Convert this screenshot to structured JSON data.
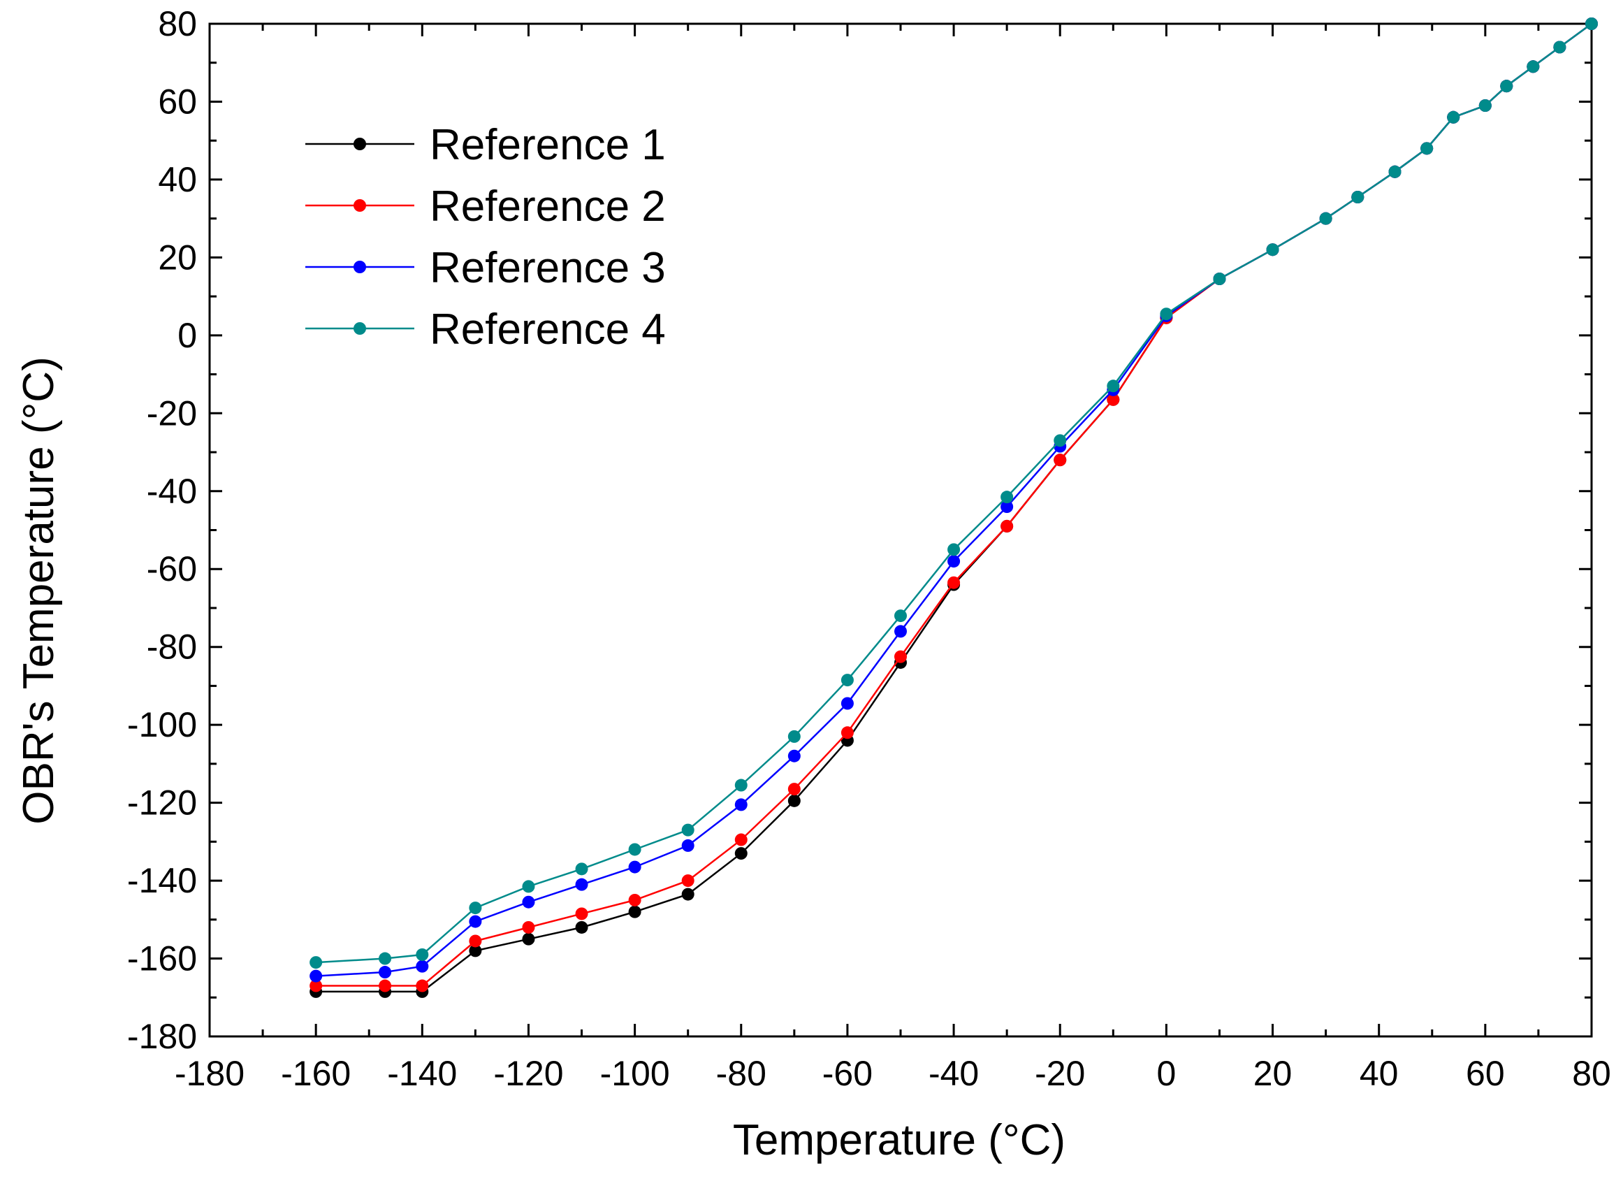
{
  "chart_data": {
    "type": "line",
    "title": "",
    "xlabel": "Temperature (°C)",
    "ylabel": "OBR's Temperature (°C)",
    "xlim": [
      -180,
      80
    ],
    "ylim": [
      -180,
      80
    ],
    "xticks": [
      -180,
      -160,
      -140,
      -120,
      -100,
      -80,
      -60,
      -40,
      -20,
      0,
      20,
      40,
      60,
      80
    ],
    "yticks": [
      -180,
      -160,
      -140,
      -120,
      -100,
      -80,
      -60,
      -40,
      -20,
      0,
      20,
      40,
      60,
      80
    ],
    "grid": false,
    "legend_position": "top-left",
    "x": [
      -160,
      -147,
      -140,
      -130,
      -120,
      -110,
      -100,
      -90,
      -80,
      -70,
      -60,
      -50,
      -40,
      -30,
      -20,
      -10,
      0,
      10,
      20,
      30,
      36,
      43,
      49,
      54,
      60,
      64,
      69,
      74,
      80
    ],
    "series": [
      {
        "name": "Reference 1",
        "color": "#000000",
        "values": [
          -168.5,
          -168.5,
          -168.5,
          -158,
          -155,
          -152,
          -148,
          -143.5,
          -133,
          -119.5,
          -104,
          -84,
          -64,
          -49,
          -32,
          -16.5,
          4.5,
          14.5,
          22,
          30,
          35.5,
          42,
          48,
          56,
          59,
          64,
          69,
          74,
          80
        ]
      },
      {
        "name": "Reference 2",
        "color": "#ff0000",
        "values": [
          -167,
          -167,
          -167,
          -155.5,
          -152,
          -148.5,
          -145,
          -140,
          -129.5,
          -116.5,
          -102,
          -82.5,
          -63.5,
          -49,
          -32,
          -16.5,
          4.5,
          14.5,
          22,
          30,
          35.5,
          42,
          48,
          56,
          59,
          64,
          69,
          74,
          80
        ]
      },
      {
        "name": "Reference 3",
        "color": "#0000ff",
        "values": [
          -164.5,
          -163.5,
          -162,
          -150.5,
          -145.5,
          -141,
          -136.5,
          -131,
          -120.5,
          -108,
          -94.5,
          -76,
          -58,
          -44,
          -28.5,
          -14,
          5,
          14.5,
          22,
          30,
          35.5,
          42,
          48,
          56,
          59,
          64,
          69,
          74,
          80
        ]
      },
      {
        "name": "Reference 4",
        "color": "#008b8b",
        "values": [
          -161,
          -160,
          -159,
          -147,
          -141.5,
          -137,
          -132,
          -127,
          -115.5,
          -103,
          -88.5,
          -72,
          -55,
          -41.5,
          -27,
          -13,
          5.5,
          14.5,
          22,
          30,
          35.5,
          42,
          48,
          56,
          59,
          64,
          69,
          74,
          80
        ]
      }
    ]
  }
}
